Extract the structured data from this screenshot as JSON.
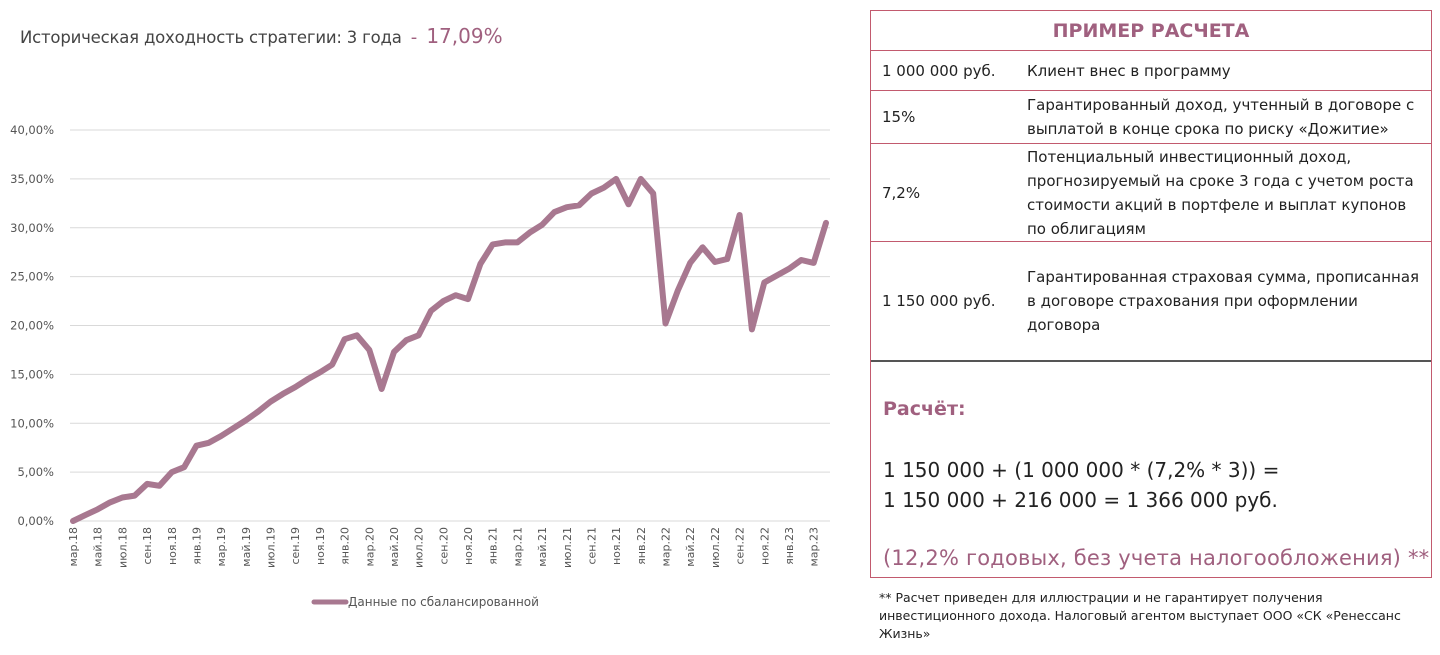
{
  "header": {
    "title": "Историческая доходность стратегии:  3 года",
    "dash": "-",
    "value": "17,09%"
  },
  "colors": {
    "accent": "#a0607f",
    "line": "#a87890",
    "border": "#c25a6e"
  },
  "chart_data": {
    "type": "line",
    "title": "",
    "xlabel": "",
    "ylabel": "",
    "ylim": [
      0,
      40
    ],
    "yticks": [
      "0,00%",
      "5,00%",
      "10,00%",
      "15,00%",
      "20,00%",
      "25,00%",
      "30,00%",
      "35,00%",
      "40,00%"
    ],
    "ytick_values": [
      0,
      5,
      10,
      15,
      20,
      25,
      30,
      35,
      40
    ],
    "grid": true,
    "legend_position": "bottom",
    "x_tick_labels": [
      "мар.18",
      "май.18",
      "июл.18",
      "сен.18",
      "ноя.18",
      "янв.19",
      "мар.19",
      "май.19",
      "июл.19",
      "сен.19",
      "ноя.19",
      "янв.20",
      "мар.20",
      "май.20",
      "июл.20",
      "сен.20",
      "ноя.20",
      "янв.21",
      "мар.21",
      "май.21",
      "июл.21",
      "сен.21",
      "ноя.21",
      "янв.22",
      "мар.22",
      "май.22",
      "июл.22",
      "сен.22",
      "ноя.22",
      "янв.23",
      "мар.23"
    ],
    "series": [
      {
        "name": "Данные по сбалансированной",
        "values": [
          0.0,
          0.6,
          1.2,
          1.9,
          2.4,
          2.6,
          3.8,
          3.6,
          5.0,
          5.5,
          7.7,
          8.0,
          8.7,
          9.5,
          10.3,
          11.2,
          12.2,
          13.0,
          13.7,
          14.5,
          15.2,
          16.0,
          18.6,
          19.0,
          17.5,
          13.5,
          17.3,
          18.5,
          19.0,
          21.5,
          22.5,
          23.1,
          22.7,
          26.3,
          28.3,
          28.5,
          28.5,
          29.5,
          30.3,
          31.6,
          32.1,
          32.3,
          33.5,
          34.1,
          35.0,
          32.4,
          35.0,
          33.5,
          20.2,
          23.6,
          26.4,
          28.0,
          26.5,
          26.8,
          31.3,
          19.6,
          24.4,
          25.1,
          25.8,
          26.7,
          26.4,
          30.5
        ]
      }
    ]
  },
  "table": {
    "title": "ПРИМЕР РАСЧЕТА",
    "rows": [
      {
        "amount": "1 000 000 руб.",
        "desc": "Клиент внес в программу"
      },
      {
        "amount": "15%",
        "desc": "Гарантированный доход,  учтенный в договоре с выплатой в конце срока по риску «Дожитие»"
      },
      {
        "amount": "7,2%",
        "desc": "Потенциальный инвестиционный доход, прогнозируемый на сроке 3 года с учетом роста стоимости акций в портфеле и выплат купонов по облигациям"
      },
      {
        "amount": "1 150 000 руб.",
        "desc": "Гарантированная страховая сумма, прописанная в договоре страхования при оформлении договора"
      }
    ]
  },
  "calc": {
    "title": "Расчёт:",
    "line1": "1 150 000 + (1 000 000 * (7,2% * 3)) =",
    "line2": "1 150 000 + 216 000 = 1 366 000 руб.",
    "note": "(12,2% годовых, без учета налогообложения) **"
  },
  "footnote": "** Расчет приведен для иллюстрации и не гарантирует получения инвестиционного дохода. Налоговый агентом выступает ООО «СК «Ренессанс Жизнь»"
}
